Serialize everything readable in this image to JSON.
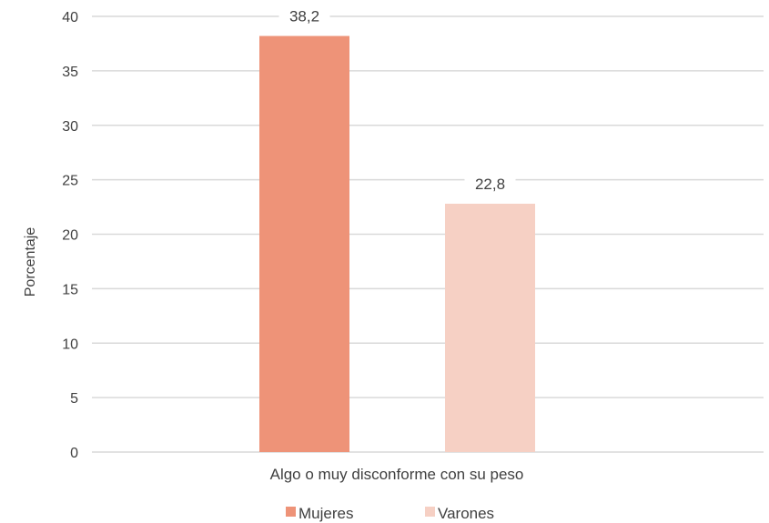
{
  "chart_data": {
    "type": "bar",
    "categories": [
      "Algo o muy disconforme con su peso"
    ],
    "series": [
      {
        "name": "Mujeres",
        "values": [
          38.2
        ],
        "color": "#EE9378",
        "label": "38,2"
      },
      {
        "name": "Varones",
        "values": [
          22.8
        ],
        "color": "#F6D0C4",
        "label": "22,8"
      }
    ],
    "title": "",
    "xlabel": "",
    "ylabel": "Porcentaje",
    "ylim": [
      0,
      40
    ],
    "yticks": [
      "0",
      "5",
      "10",
      "15",
      "20",
      "25",
      "30",
      "35",
      "40"
    ],
    "grid": true,
    "gridColor": "#D9D9D9",
    "legend_position": "bottom"
  }
}
